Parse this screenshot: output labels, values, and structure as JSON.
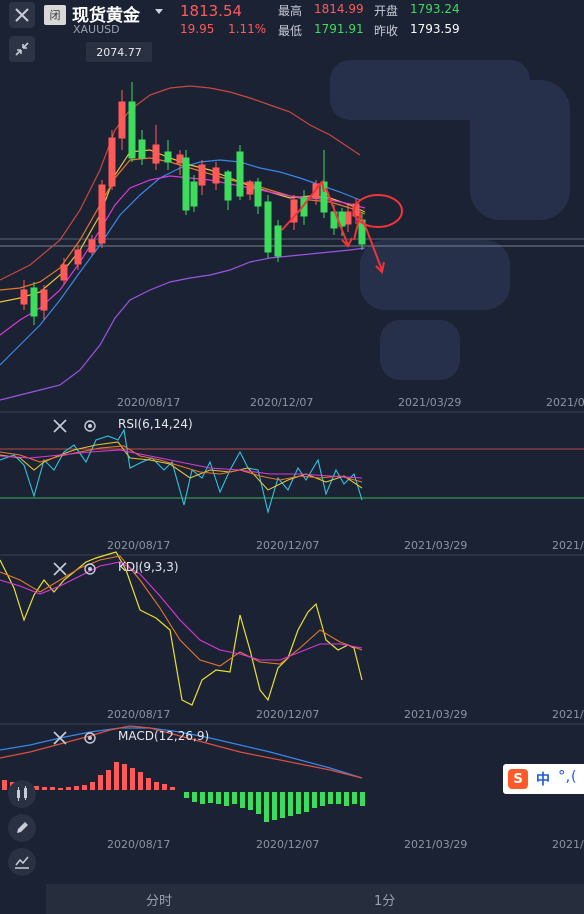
{
  "header": {
    "close_icon": "close-icon",
    "badge": "闭",
    "name": "现货黄金",
    "code": "XAUUSD",
    "price": "1813.54",
    "change": "19.95",
    "change_pct": "1.11%",
    "high_label": "最高",
    "high": "1814.99",
    "open_label": "开盘",
    "open": "1793.24",
    "low_label": "最低",
    "low": "1791.91",
    "prev_label": "昨收",
    "prev": "1793.59"
  },
  "main_chart": {
    "max_label": "2074.77",
    "dates": [
      "2020/08/17",
      "2020/12/07",
      "2021/03/29",
      "2021/0"
    ]
  },
  "indicators": {
    "rsi": {
      "label": "RSI(6,14,24)"
    },
    "kdj": {
      "label": "KDJ(9,3,3)"
    },
    "macd": {
      "label": "MACD(12,26,9)"
    }
  },
  "bottom_tabs": [
    "分时",
    "1分"
  ],
  "ime": {
    "letter": "S",
    "text": "中",
    "punct": "°,",
    "extra": "("
  },
  "colors": {
    "up": "#ff5a5a",
    "down": "#3ddc5c",
    "background": "#1b2233"
  }
}
